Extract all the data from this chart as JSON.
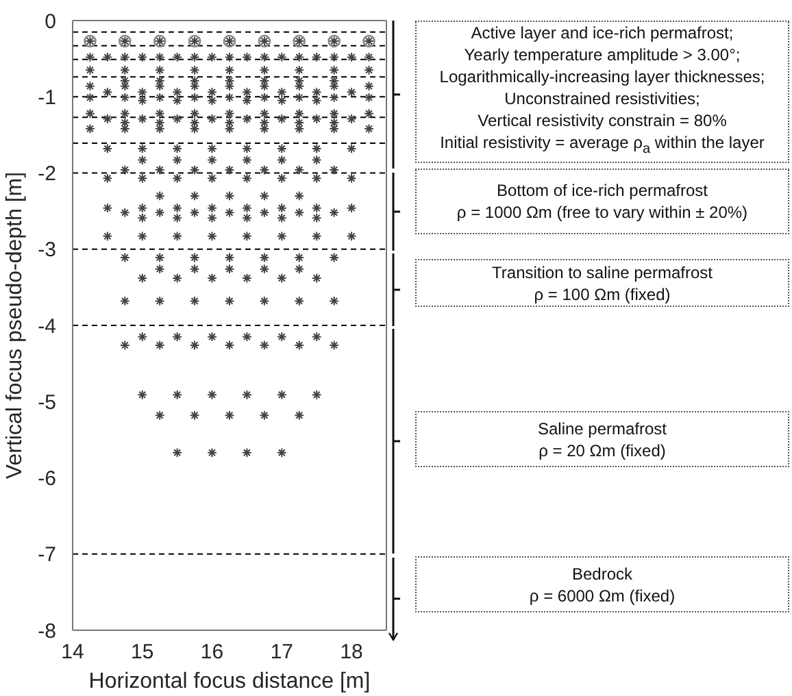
{
  "chart_data": {
    "type": "scatter",
    "xlabel": "Horizontal focus distance [m]",
    "ylabel": "Vertical focus pseudo-depth [m]",
    "xlim": [
      14,
      18.5
    ],
    "ylim": [
      -8,
      0
    ],
    "xticks": [
      14,
      15,
      16,
      17,
      18
    ],
    "yticks": [
      -8,
      -7,
      -6,
      -5,
      -4,
      -3,
      -2,
      -1,
      0
    ],
    "series": [
      {
        "color": "#888888",
        "marker": "circle",
        "x": [
          14.25,
          14.75,
          15.25,
          15.75,
          16.25,
          16.75,
          17.25,
          17.75,
          18.25
        ],
        "values": [
          -0.27,
          -0.27,
          -0.27,
          -0.27,
          -0.27,
          -0.27,
          -0.27,
          -0.27,
          -0.27
        ]
      },
      {
        "color": "#444444",
        "marker": "cross",
        "x": [
          14.25,
          14.75,
          15.25,
          15.75,
          16.25,
          16.75,
          17.25,
          17.75,
          18.25,
          14.25,
          14.5,
          14.75,
          15,
          15.25,
          15.5,
          15.75,
          16,
          16.25,
          16.5,
          16.75,
          17,
          17.25,
          17.5,
          17.75,
          18,
          18.25,
          14.25,
          14.75,
          15.25,
          15.75,
          16.25,
          16.75,
          17.25,
          17.75,
          18.25,
          14.75,
          15.25,
          15.75,
          16.25,
          16.75,
          17.25,
          17.75,
          14.25,
          14.75,
          15.25,
          15.75,
          16.25,
          16.75,
          17.25,
          17.75,
          18.25,
          14.5,
          15,
          15.5,
          16,
          16.5,
          17,
          17.5,
          18,
          14.25,
          14.75,
          15.25,
          15.75,
          16.25,
          16.75,
          17.25,
          17.75,
          18.25,
          15,
          15.5,
          16,
          16.5,
          17,
          17.5,
          14.25,
          14.75,
          15.25,
          15.75,
          16.25,
          16.75,
          17.25,
          17.75,
          18.25,
          14.5,
          15,
          15.5,
          16,
          16.5,
          17,
          17.5,
          18,
          14.75,
          15.25,
          15.75,
          16.25,
          16.75,
          17.25,
          17.75,
          14.25,
          14.75,
          15.25,
          15.75,
          16.25,
          16.75,
          17.25,
          17.75,
          18.25,
          14.5,
          15,
          15.5,
          16,
          16.5,
          17,
          17.5,
          18,
          15,
          15.5,
          16,
          16.5,
          17,
          17.5,
          14.75,
          15.25,
          15.75,
          16.25,
          16.75,
          17.25,
          17.75,
          14.5,
          15,
          15.5,
          16,
          16.5,
          17,
          17.5,
          18,
          15.25,
          15.75,
          16.25,
          16.75,
          17.25,
          14.5,
          15,
          15.5,
          16,
          16.5,
          17,
          17.5,
          18,
          14.75,
          15.25,
          15.75,
          16.25,
          16.75,
          17.25,
          17.75,
          15,
          15.5,
          16,
          16.5,
          17,
          17.5,
          14.5,
          15,
          15.5,
          16,
          16.5,
          17,
          17.5,
          18,
          14.75,
          15.25,
          15.75,
          16.25,
          16.75,
          17.25,
          17.75,
          15.25,
          15.75,
          16.25,
          16.75,
          17.25,
          15,
          15.5,
          16,
          16.5,
          17,
          17.5,
          14.75,
          15.25,
          15.75,
          16.25,
          16.75,
          17.25,
          17.75,
          15,
          15.5,
          16,
          16.5,
          17,
          17.5,
          14.75,
          15.25,
          15.75,
          16.25,
          16.75,
          17.25,
          17.75,
          15,
          15.5,
          16,
          16.5,
          17,
          17.5,
          15.25,
          15.75,
          16.25,
          16.75,
          17.25,
          15.5,
          16,
          16.5,
          17
        ],
        "values": [
          -0.27,
          -0.27,
          -0.27,
          -0.27,
          -0.27,
          -0.27,
          -0.27,
          -0.27,
          -0.27,
          -0.48,
          -0.48,
          -0.48,
          -0.48,
          -0.48,
          -0.48,
          -0.48,
          -0.48,
          -0.48,
          -0.48,
          -0.48,
          -0.48,
          -0.48,
          -0.48,
          -0.48,
          -0.48,
          -0.48,
          -0.65,
          -0.65,
          -0.65,
          -0.65,
          -0.65,
          -0.65,
          -0.65,
          -0.65,
          -0.65,
          -0.79,
          -0.79,
          -0.79,
          -0.79,
          -0.79,
          -0.79,
          -0.79,
          -0.86,
          -0.86,
          -0.86,
          -0.86,
          -0.86,
          -0.86,
          -0.86,
          -0.86,
          -0.86,
          -0.94,
          -0.94,
          -0.94,
          -0.94,
          -0.94,
          -0.94,
          -0.94,
          -0.94,
          -1.01,
          -1.01,
          -1.01,
          -1.01,
          -1.01,
          -1.01,
          -1.01,
          -1.01,
          -1.01,
          -1.05,
          -1.05,
          -1.05,
          -1.05,
          -1.05,
          -1.05,
          -1.22,
          -1.22,
          -1.22,
          -1.22,
          -1.22,
          -1.22,
          -1.22,
          -1.22,
          -1.22,
          -1.29,
          -1.29,
          -1.29,
          -1.29,
          -1.29,
          -1.29,
          -1.29,
          -1.29,
          -1.34,
          -1.34,
          -1.34,
          -1.34,
          -1.34,
          -1.34,
          -1.34,
          -1.42,
          -1.42,
          -1.42,
          -1.42,
          -1.42,
          -1.42,
          -1.42,
          -1.42,
          -1.42,
          -1.68,
          -1.68,
          -1.68,
          -1.68,
          -1.68,
          -1.68,
          -1.68,
          -1.68,
          -1.83,
          -1.83,
          -1.83,
          -1.83,
          -1.83,
          -1.83,
          -1.96,
          -1.96,
          -1.96,
          -1.96,
          -1.96,
          -1.96,
          -1.96,
          -2.07,
          -2.07,
          -2.07,
          -2.07,
          -2.07,
          -2.07,
          -2.07,
          -2.07,
          -2.3,
          -2.3,
          -2.3,
          -2.3,
          -2.3,
          -2.46,
          -2.46,
          -2.46,
          -2.46,
          -2.46,
          -2.46,
          -2.46,
          -2.46,
          -2.52,
          -2.52,
          -2.52,
          -2.52,
          -2.52,
          -2.52,
          -2.52,
          -2.59,
          -2.59,
          -2.59,
          -2.59,
          -2.59,
          -2.59,
          -2.83,
          -2.83,
          -2.83,
          -2.83,
          -2.83,
          -2.83,
          -2.83,
          -2.83,
          -3.11,
          -3.11,
          -3.11,
          -3.11,
          -3.11,
          -3.11,
          -3.11,
          -3.26,
          -3.26,
          -3.26,
          -3.26,
          -3.26,
          -3.38,
          -3.38,
          -3.38,
          -3.38,
          -3.38,
          -3.38,
          -3.68,
          -3.68,
          -3.68,
          -3.68,
          -3.68,
          -3.68,
          -3.68,
          -4.15,
          -4.15,
          -4.15,
          -4.15,
          -4.15,
          -4.15,
          -4.26,
          -4.26,
          -4.26,
          -4.26,
          -4.26,
          -4.26,
          -4.26,
          -4.91,
          -4.91,
          -4.91,
          -4.91,
          -4.91,
          -4.91,
          -5.18,
          -5.18,
          -5.18,
          -5.18,
          -5.18,
          -5.67,
          -5.67,
          -5.67,
          -5.67
        ]
      }
    ],
    "ref_lines": [
      {
        "axis": "y",
        "value": -0.15,
        "line_style": "dashed",
        "color": "#000000"
      },
      {
        "axis": "y",
        "value": -0.33,
        "line_style": "dashed",
        "color": "#000000"
      },
      {
        "axis": "y",
        "value": -0.51,
        "line_style": "dashed",
        "color": "#000000"
      },
      {
        "axis": "y",
        "value": -0.74,
        "line_style": "dashed",
        "color": "#000000"
      },
      {
        "axis": "y",
        "value": -1,
        "line_style": "dashed",
        "color": "#000000"
      },
      {
        "axis": "y",
        "value": -1.27,
        "line_style": "dashed",
        "color": "#000000"
      },
      {
        "axis": "y",
        "value": -1.61,
        "line_style": "dashed",
        "color": "#000000"
      },
      {
        "axis": "y",
        "value": -2,
        "line_style": "dashed",
        "color": "#000000"
      },
      {
        "axis": "y",
        "value": -3,
        "line_style": "dashed",
        "color": "#000000"
      },
      {
        "axis": "y",
        "value": -4,
        "line_style": "dashed",
        "color": "#000000"
      },
      {
        "axis": "y",
        "value": -7,
        "line_style": "dashed",
        "color": "#000000"
      }
    ],
    "annotations": [
      "Active layer and ice-rich permafrost;\nYearly temperature amplitude > 3.00°;\nLogarithmically-increasing layer thicknesses;\nUnconstrained resistivities;\nVertical resistivity constrain = 80%\nInitial resistivity = average ρ$_{a}$ within the layer",
      "Bottom of ice-rich permafrost\nρ = 1000 Ωm (free to vary within ± 20%)",
      "Transition to saline permafrost\nρ = 100 Ωm (fixed)",
      "Saline permafrost\nρ = 20 Ωm (fixed)",
      "Bedrock\nρ = 6000 Ωm (fixed)"
    ]
  }
}
